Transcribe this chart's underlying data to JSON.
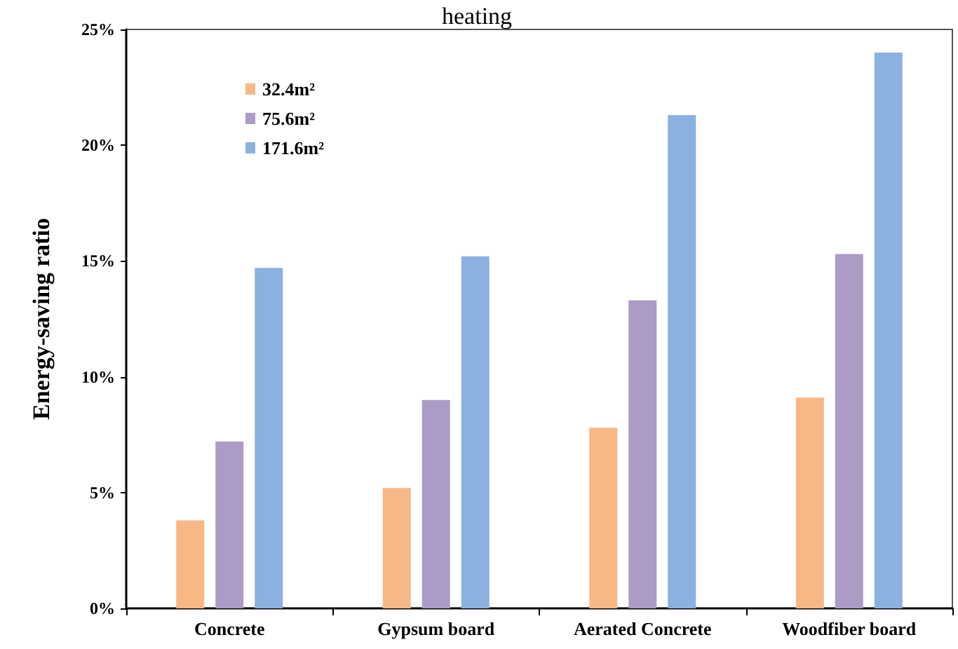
{
  "chart_data": {
    "type": "bar",
    "title": "heating",
    "ylabel": "Energy-saving ratio",
    "categories": [
      "Concrete",
      "Gypsum board",
      "Aerated Concrete",
      "Woodfiber board"
    ],
    "series": [
      {
        "name": "32.4m²",
        "color": "#f7b886",
        "values": [
          3.8,
          5.2,
          7.8,
          9.1
        ]
      },
      {
        "name": "75.6m²",
        "color": "#ab9bc6",
        "values": [
          7.2,
          9.0,
          13.3,
          15.3
        ]
      },
      {
        "name": "171.6m²",
        "color": "#8bb1e0",
        "values": [
          14.7,
          15.2,
          21.3,
          24.0
        ]
      }
    ],
    "ylim": [
      0,
      25
    ],
    "yticks": [
      {
        "value": 0,
        "label": "0%"
      },
      {
        "value": 5,
        "label": "5%"
      },
      {
        "value": 10,
        "label": "10%"
      },
      {
        "value": 15,
        "label": "15%"
      },
      {
        "value": 20,
        "label": "20%"
      },
      {
        "value": 25,
        "label": "25%"
      }
    ],
    "grid": false,
    "legend": "top left"
  }
}
